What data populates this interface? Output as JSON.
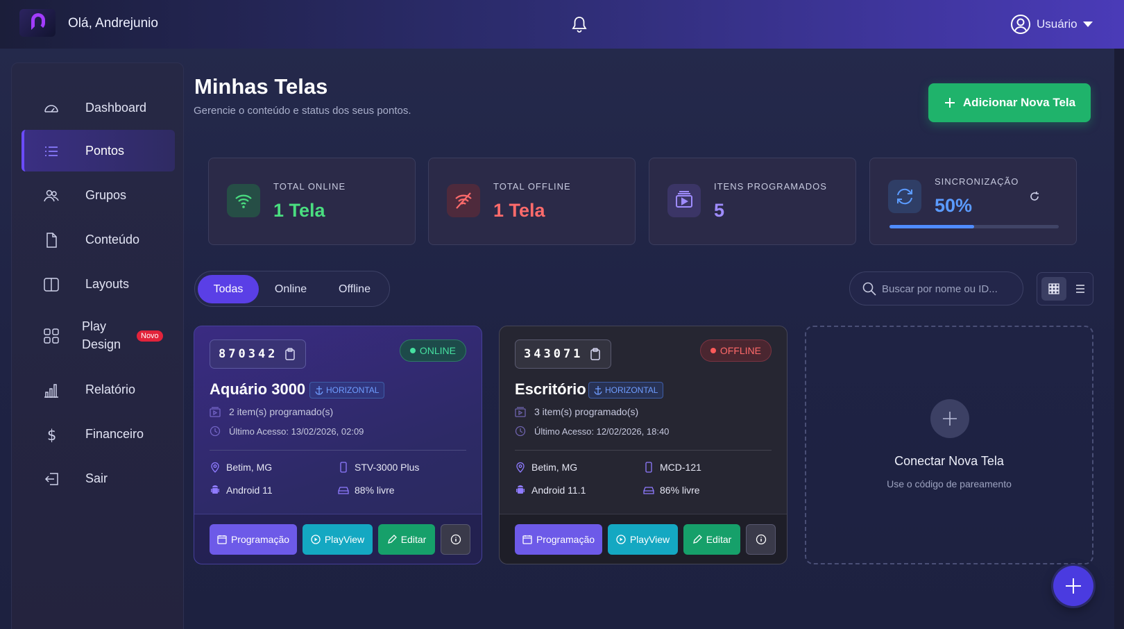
{
  "header": {
    "greeting": "Olá, Andrejunio",
    "user_label": "Usuário"
  },
  "sidebar": {
    "items": [
      {
        "label": "Dashboard",
        "icon": "speedometer-icon"
      },
      {
        "label": "Pontos",
        "icon": "list-icon",
        "active": true
      },
      {
        "label": "Grupos",
        "icon": "users-icon"
      },
      {
        "label": "Conteúdo",
        "icon": "file-icon"
      },
      {
        "label": "Layouts",
        "icon": "layout-icon"
      },
      {
        "label": "Play\nDesign",
        "icon": "grid-icon",
        "badge": "Novo"
      },
      {
        "label": "Relatório",
        "icon": "bar-chart-icon"
      },
      {
        "label": "Financeiro",
        "icon": "dollar-icon"
      },
      {
        "label": "Sair",
        "icon": "logout-icon"
      }
    ]
  },
  "page": {
    "title": "Minhas Telas",
    "subtitle": "Gerencie o conteúdo e status dos seus pontos.",
    "add_button": "Adicionar Nova Tela"
  },
  "stats": [
    {
      "title": "TOTAL ONLINE",
      "value": "1 Tela",
      "color": "#4ade80"
    },
    {
      "title": "TOTAL OFFLINE",
      "value": "1 Tela",
      "color": "#ff6b6b"
    },
    {
      "title": "ITENS PROGRAMADOS",
      "value": "5",
      "color": "#9f8cff"
    },
    {
      "title": "SINCRONIZAÇÃO",
      "value": "50%",
      "color": "#5b9bff",
      "progress": 0.5
    }
  ],
  "filters": {
    "options": [
      "Todas",
      "Online",
      "Offline"
    ],
    "selected": "Todas"
  },
  "search": {
    "placeholder": "Buscar por nome ou ID..."
  },
  "screens": [
    {
      "code": "870342",
      "status": "ONLINE",
      "name": "Aquário 3000",
      "orientation": "HORIZONTAL",
      "items": "2 item(s) programado(s)",
      "last_access": "Último Acesso: 13/02/2026, 02:09",
      "location": "Betim, MG",
      "device": "STV-3000 Plus",
      "os": "Android 11",
      "storage": "88% livre"
    },
    {
      "code": "343071",
      "status": "OFFLINE",
      "name": "Escritório",
      "orientation": "HORIZONTAL",
      "items": "3 item(s) programado(s)",
      "last_access": "Último Acesso: 12/02/2026, 18:40",
      "location": "Betim, MG",
      "device": "MCD-121",
      "os": "Android 11.1",
      "storage": "86% livre"
    }
  ],
  "card_actions": {
    "schedule": "Programação",
    "playview": "PlayView",
    "edit": "Editar"
  },
  "new_screen": {
    "title": "Conectar Nova Tela",
    "subtitle": "Use o código de pareamento"
  }
}
